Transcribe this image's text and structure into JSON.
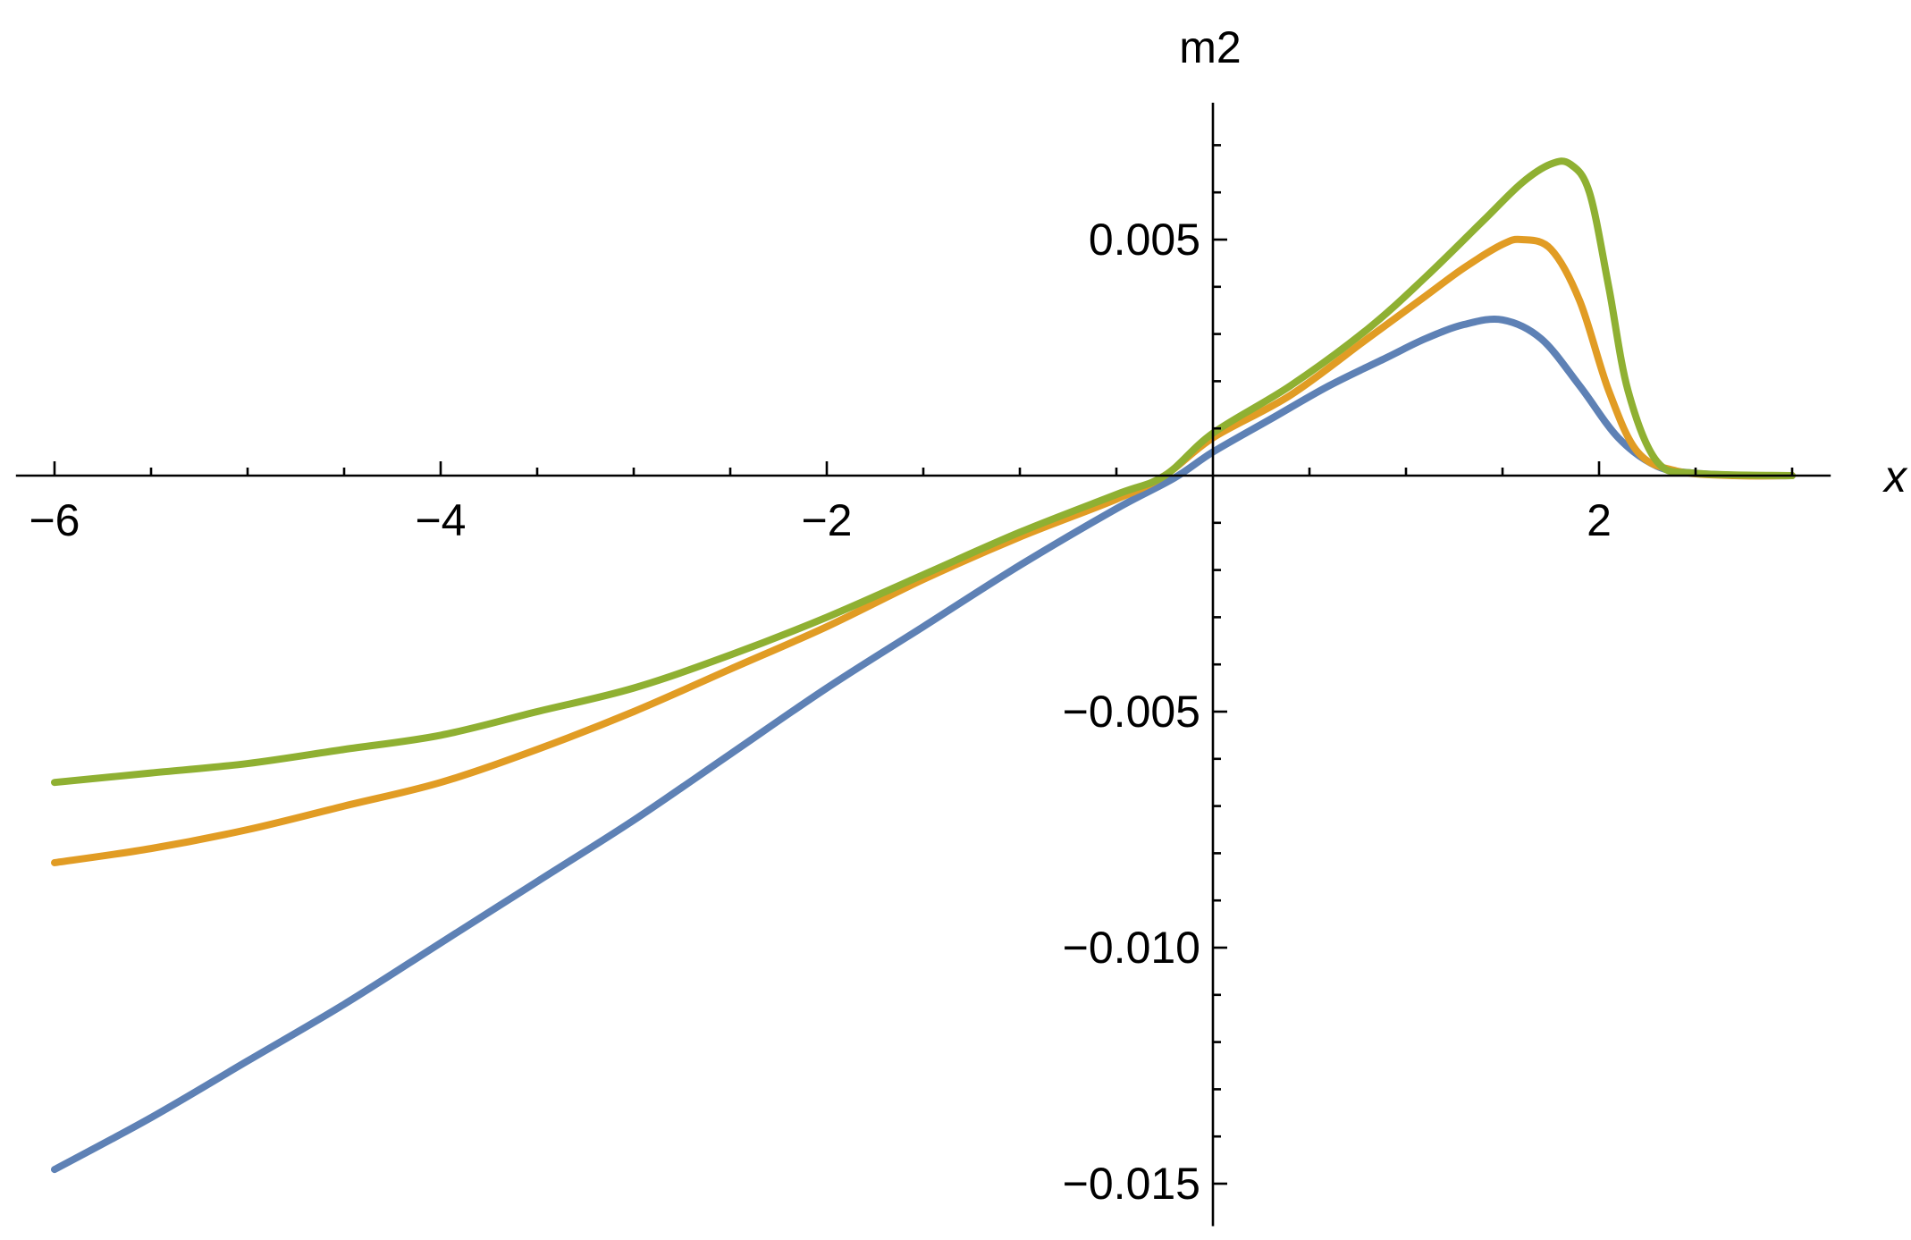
{
  "chart_data": {
    "type": "line",
    "title": "",
    "xlabel": "x",
    "ylabel": "m2",
    "xlim": [
      -6.2,
      3.2
    ],
    "ylim": [
      -0.0159,
      0.0079
    ],
    "grid": false,
    "legend": "none",
    "x_ticks": [
      {
        "value": -6,
        "label": "−6"
      },
      {
        "value": -4,
        "label": "−4"
      },
      {
        "value": -2,
        "label": "−2"
      },
      {
        "value": 2,
        "label": "2"
      }
    ],
    "y_ticks": [
      {
        "value": 0.005,
        "label": "0.005"
      },
      {
        "value": -0.005,
        "label": "−0.005"
      },
      {
        "value": -0.01,
        "label": "−0.010"
      },
      {
        "value": -0.015,
        "label": "−0.015"
      }
    ],
    "series": [
      {
        "color": "#5E81B5",
        "points": [
          [
            -6,
            -0.0147
          ],
          [
            -5.5,
            -0.0136
          ],
          [
            -5,
            -0.0124
          ],
          [
            -4.5,
            -0.0112
          ],
          [
            -4,
            -0.0099
          ],
          [
            -3.5,
            -0.0086
          ],
          [
            -3,
            -0.0073
          ],
          [
            -2.5,
            -0.0059
          ],
          [
            -2,
            -0.0045
          ],
          [
            -1.5,
            -0.0032
          ],
          [
            -1,
            -0.0019
          ],
          [
            -0.5,
            -0.0007
          ],
          [
            -0.2,
            -5e-05
          ],
          [
            0,
            0.0005
          ],
          [
            0.3,
            0.0012
          ],
          [
            0.6,
            0.0019
          ],
          [
            0.9,
            0.0025
          ],
          [
            1.1,
            0.0029
          ],
          [
            1.3,
            0.0032
          ],
          [
            1.5,
            0.0033
          ],
          [
            1.7,
            0.0029
          ],
          [
            1.9,
            0.0019
          ],
          [
            2.1,
            0.0008
          ],
          [
            2.3,
            0.0002
          ],
          [
            2.5,
            5e-05
          ],
          [
            2.8,
            0.0
          ],
          [
            3,
            0.0
          ]
        ]
      },
      {
        "color": "#E19C24",
        "points": [
          [
            -6,
            -0.0082
          ],
          [
            -5.5,
            -0.0079
          ],
          [
            -5,
            -0.0075
          ],
          [
            -4.5,
            -0.007
          ],
          [
            -4,
            -0.0065
          ],
          [
            -3.5,
            -0.0058
          ],
          [
            -3,
            -0.005
          ],
          [
            -2.5,
            -0.0041
          ],
          [
            -2,
            -0.0032
          ],
          [
            -1.5,
            -0.0022
          ],
          [
            -1,
            -0.0013
          ],
          [
            -0.5,
            -0.0005
          ],
          [
            -0.25,
            0.0
          ],
          [
            0,
            0.0008
          ],
          [
            0.4,
            0.0017
          ],
          [
            0.8,
            0.0029
          ],
          [
            1.1,
            0.0038
          ],
          [
            1.3,
            0.0044
          ],
          [
            1.5,
            0.0049
          ],
          [
            1.6,
            0.005
          ],
          [
            1.75,
            0.0048
          ],
          [
            1.9,
            0.0037
          ],
          [
            2.05,
            0.0018
          ],
          [
            2.2,
            0.0005
          ],
          [
            2.4,
            0.0001
          ],
          [
            2.7,
            0.0
          ],
          [
            3,
            0.0
          ]
        ]
      },
      {
        "color": "#8FB032",
        "points": [
          [
            -6,
            -0.0065
          ],
          [
            -5.5,
            -0.0063
          ],
          [
            -5,
            -0.0061
          ],
          [
            -4.5,
            -0.0058
          ],
          [
            -4,
            -0.0055
          ],
          [
            -3.5,
            -0.005
          ],
          [
            -3,
            -0.0045
          ],
          [
            -2.5,
            -0.0038
          ],
          [
            -2,
            -0.003
          ],
          [
            -1.5,
            -0.0021
          ],
          [
            -1,
            -0.0012
          ],
          [
            -0.5,
            -0.0004
          ],
          [
            -0.25,
            0.0
          ],
          [
            0,
            0.0009
          ],
          [
            0.4,
            0.0019
          ],
          [
            0.8,
            0.0031
          ],
          [
            1.1,
            0.0042
          ],
          [
            1.4,
            0.0054
          ],
          [
            1.6,
            0.0062
          ],
          [
            1.75,
            0.0066
          ],
          [
            1.85,
            0.0066
          ],
          [
            1.95,
            0.006
          ],
          [
            2.05,
            0.004
          ],
          [
            2.15,
            0.0018
          ],
          [
            2.3,
            0.0003
          ],
          [
            2.5,
            5e-05
          ],
          [
            3,
            0.0
          ]
        ]
      }
    ]
  }
}
